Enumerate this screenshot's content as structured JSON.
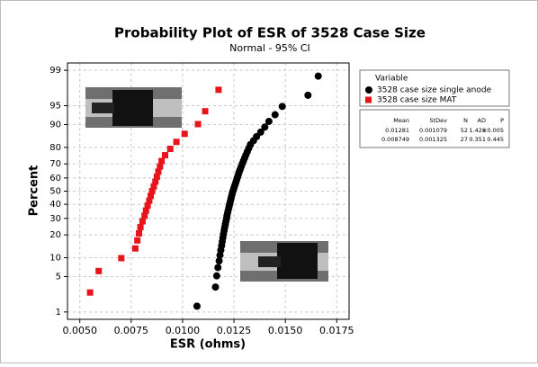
{
  "chart_data": {
    "type": "probability",
    "title": "Probability Plot of ESR of 3528 Case Size",
    "subtitle": "Normal - 95% CI",
    "x_label": "ESR (ohms)",
    "y_label": "Percent",
    "yscale": "normal-probability",
    "grid": true,
    "legend_position": "outside-right",
    "legend_title": "Variable",
    "xlim": [
      0.0044,
      0.0181
    ],
    "ylim": [
      0.68,
      99.32
    ],
    "xticks": [
      {
        "value": 0.005,
        "label": "0.0050"
      },
      {
        "value": 0.0075,
        "label": "0.0075"
      },
      {
        "value": 0.01,
        "label": "0.0100"
      },
      {
        "value": 0.0125,
        "label": "0.0125"
      },
      {
        "value": 0.015,
        "label": "0.0150"
      },
      {
        "value": 0.0175,
        "label": "0.0175"
      }
    ],
    "yticks": [
      1,
      5,
      10,
      20,
      30,
      40,
      50,
      60,
      70,
      80,
      90,
      95,
      99
    ],
    "series": [
      {
        "name": "3528 case size single anode",
        "color": "#000000",
        "marker": "circle",
        "x": [
          0.0107,
          0.0116,
          0.01166,
          0.01172,
          0.01178,
          0.01182,
          0.01186,
          0.0119,
          0.01193,
          0.01196,
          0.01199,
          0.01202,
          0.01205,
          0.01208,
          0.01211,
          0.01214,
          0.01216,
          0.01219,
          0.01222,
          0.01225,
          0.01228,
          0.01231,
          0.01234,
          0.01237,
          0.0124,
          0.01243,
          0.01247,
          0.01251,
          0.01255,
          0.01259,
          0.01263,
          0.01267,
          0.01271,
          0.01275,
          0.0128,
          0.01285,
          0.0129,
          0.01296,
          0.01302,
          0.01308,
          0.01315,
          0.01322,
          0.0133,
          0.01345,
          0.0136,
          0.0138,
          0.014,
          0.0142,
          0.0145,
          0.01485,
          0.0161,
          0.0166
        ],
        "values": [
          1.34,
          3.24,
          5.15,
          7.06,
          8.97,
          10.88,
          12.79,
          14.69,
          16.6,
          18.51,
          20.42,
          22.33,
          24.24,
          26.15,
          28.05,
          29.96,
          31.87,
          33.78,
          35.69,
          37.6,
          39.5,
          41.41,
          43.32,
          45.23,
          47.14,
          49.05,
          50.95,
          52.86,
          54.77,
          56.68,
          58.59,
          60.5,
          62.4,
          64.31,
          66.22,
          68.13,
          70.04,
          71.95,
          73.85,
          75.76,
          77.67,
          79.58,
          81.49,
          83.4,
          85.31,
          87.21,
          89.12,
          91.03,
          92.94,
          94.85,
          96.76,
          98.66
        ]
      },
      {
        "name": "3528 case size MAT",
        "color": "#e8141b",
        "marker": "square",
        "x": [
          0.0055,
          0.00592,
          0.00702,
          0.0077,
          0.0078,
          0.00788,
          0.00795,
          0.00805,
          0.00815,
          0.00822,
          0.0083,
          0.00838,
          0.00845,
          0.00852,
          0.0086,
          0.00868,
          0.00875,
          0.00882,
          0.0089,
          0.00898,
          0.00915,
          0.0094,
          0.0097,
          0.0101,
          0.01075,
          0.0111,
          0.01175
        ],
        "values": [
          2.55,
          6.2,
          9.85,
          13.5,
          17.15,
          20.8,
          24.45,
          28.1,
          31.75,
          35.4,
          39.05,
          42.7,
          46.35,
          50.0,
          53.65,
          57.3,
          60.95,
          64.6,
          68.25,
          71.9,
          75.55,
          79.2,
          82.85,
          86.5,
          90.15,
          93.8,
          97.45
        ]
      }
    ],
    "stats": {
      "header": [
        "Mean",
        "StDev",
        "N",
        "AD",
        "P"
      ],
      "rows": [
        [
          "0.01281",
          "0.001079",
          "52",
          "1.428",
          "<0.005"
        ],
        [
          "0.008749",
          "0.001325",
          "27",
          "0.351",
          "0.445"
        ]
      ]
    }
  }
}
